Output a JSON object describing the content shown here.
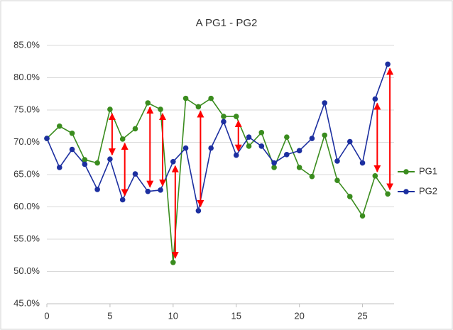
{
  "chart_data": {
    "type": "line",
    "title": "A PG1 - PG2",
    "x": [
      0,
      1,
      2,
      3,
      4,
      5,
      6,
      7,
      8,
      9,
      10,
      11,
      12,
      13,
      14,
      15,
      16,
      17,
      18,
      19,
      20,
      21,
      22,
      23,
      24,
      25,
      26,
      27
    ],
    "series": [
      {
        "name": "PG1",
        "color": "#3a8c1e",
        "values": [
          70.6,
          72.5,
          71.4,
          67.3,
          66.8,
          75.1,
          70.5,
          72.1,
          76.1,
          75.1,
          51.4,
          76.8,
          75.5,
          76.8,
          74.0,
          74.0,
          69.4,
          71.5,
          66.1,
          70.8,
          66.1,
          64.7,
          71.1,
          64.1,
          61.6,
          58.6,
          64.8,
          62.0
        ]
      },
      {
        "name": "PG2",
        "color": "#1c2fa0",
        "values": [
          70.6,
          66.1,
          68.9,
          66.6,
          62.7,
          67.4,
          61.1,
          65.1,
          62.4,
          62.6,
          67.0,
          69.1,
          59.4,
          69.1,
          73.2,
          68.0,
          70.8,
          69.4,
          66.8,
          68.1,
          68.7,
          70.6,
          76.1,
          67.1,
          70.1,
          66.8,
          76.7,
          82.1
        ]
      }
    ],
    "arrows": {
      "color": "#ff0000",
      "x": [
        5,
        6,
        8,
        9,
        10,
        12,
        15,
        26,
        27
      ]
    },
    "xlim": [
      0,
      27.5
    ],
    "xticks": [
      0,
      5,
      10,
      15,
      20,
      25
    ],
    "ylim": [
      45,
      85
    ],
    "yticks": [
      {
        "value": 45,
        "label": "45.0%"
      },
      {
        "value": 50,
        "label": "50.0%"
      },
      {
        "value": 55,
        "label": "55.0%"
      },
      {
        "value": 60,
        "label": "60.0%"
      },
      {
        "value": 65,
        "label": "65.0%"
      },
      {
        "value": 70,
        "label": "70.0%"
      },
      {
        "value": 75,
        "label": "75.0%"
      },
      {
        "value": 80,
        "label": "80.0%"
      },
      {
        "value": 85,
        "label": "85.0%"
      }
    ],
    "grid": true,
    "legend": "right"
  }
}
